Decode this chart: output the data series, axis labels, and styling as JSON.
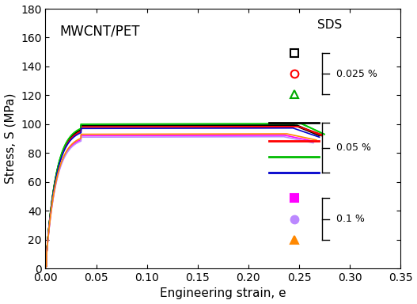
{
  "title": "MWCNT/PET",
  "xlabel": "Engineering strain, e",
  "ylabel": "Stress, S (MPa)",
  "xlim": [
    0.0,
    0.35
  ],
  "ylim": [
    0,
    180
  ],
  "xticks": [
    0.0,
    0.05,
    0.1,
    0.15,
    0.2,
    0.25,
    0.3,
    0.35
  ],
  "yticks": [
    0,
    20,
    40,
    60,
    80,
    100,
    120,
    140,
    160,
    180
  ],
  "curves": [
    {
      "color": "#000000",
      "plateau": 99,
      "drop_strain": 0.245,
      "drop_end": 0.27,
      "drop_stress": 92
    },
    {
      "color": "#ff0000",
      "plateau": 98,
      "drop_strain": 0.25,
      "drop_end": 0.272,
      "drop_stress": 93
    },
    {
      "color": "#00bb00",
      "plateau": 100,
      "drop_strain": 0.252,
      "drop_end": 0.275,
      "drop_stress": 93
    },
    {
      "color": "#000000",
      "plateau": 99,
      "drop_strain": 0.248,
      "drop_end": 0.272,
      "drop_stress": 92
    },
    {
      "color": "#ff0000",
      "plateau": 98,
      "drop_strain": 0.25,
      "drop_end": 0.273,
      "drop_stress": 92
    },
    {
      "color": "#00cc00",
      "plateau": 100,
      "drop_strain": 0.253,
      "drop_end": 0.275,
      "drop_stress": 93
    },
    {
      "color": "#0000cc",
      "plateau": 97,
      "drop_strain": 0.244,
      "drop_end": 0.27,
      "drop_stress": 91
    },
    {
      "color": "#ff00ff",
      "plateau": 92,
      "drop_strain": 0.236,
      "drop_end": 0.265,
      "drop_stress": 88
    },
    {
      "color": "#bb88ff",
      "plateau": 91,
      "drop_strain": 0.235,
      "drop_end": 0.264,
      "drop_stress": 87
    },
    {
      "color": "#ff8800",
      "plateau": 93,
      "drop_strain": 0.238,
      "drop_end": 0.267,
      "drop_stress": 89
    }
  ],
  "legend_title": "SDS",
  "g1_markers": [
    [
      "s",
      "#000000",
      false
    ],
    [
      "o",
      "#ff0000",
      false
    ],
    [
      "^",
      "#00aa00",
      false
    ]
  ],
  "g2_colors": [
    "#000000",
    "#ff0000",
    "#00bb00",
    "#0000cc"
  ],
  "g3_markers": [
    [
      "s",
      "#ff00ff",
      true
    ],
    [
      "o",
      "#bb88ff",
      true
    ],
    [
      "^",
      "#ff8800",
      true
    ]
  ],
  "background_color": "#ffffff"
}
